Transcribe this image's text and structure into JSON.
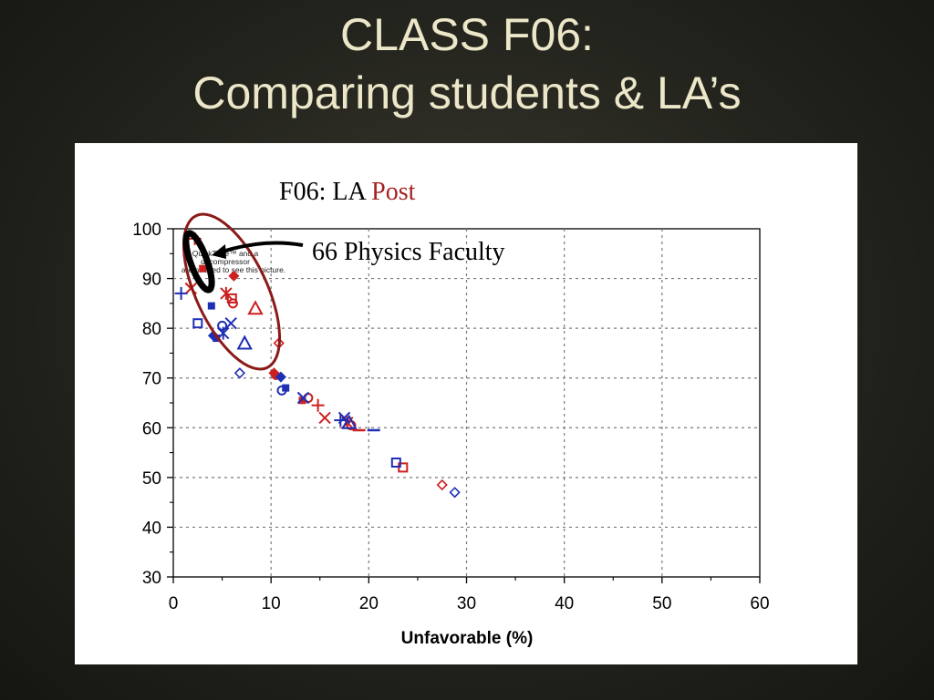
{
  "slide": {
    "title_line1": "CLASS F06:",
    "title_line2": "Comparing students & LA’s"
  },
  "colors": {
    "red": "#cc1f1f",
    "blue": "#1f2fb3",
    "ellipse": "#8b1a1a",
    "grid": "#7a7a7a"
  },
  "chart_data": {
    "type": "scatter",
    "title_prefix": "F06: LA ",
    "title_highlight": "Post",
    "xlabel": "Unfavorable (%)",
    "ylabel": "",
    "xlim": [
      0,
      60
    ],
    "ylim": [
      30,
      100
    ],
    "xticks": [
      0,
      10,
      20,
      30,
      40,
      50,
      60
    ],
    "yticks": [
      30,
      40,
      50,
      60,
      70,
      80,
      90,
      100
    ],
    "grid": true,
    "annotation": {
      "text": "66  Physics Faculty",
      "placeholder_lines": [
        "QuickTime™ and a",
        "decompressor",
        "are needed to see this picture."
      ]
    },
    "series": [
      {
        "color": "red",
        "points": [
          {
            "x": 2.2,
            "y": 98,
            "m": "plus"
          },
          {
            "x": 3.0,
            "y": 92,
            "m": "square"
          },
          {
            "x": 6.2,
            "y": 90.5,
            "m": "diamond"
          },
          {
            "x": 1.8,
            "y": 88,
            "m": "x"
          },
          {
            "x": 5.4,
            "y": 87,
            "m": "star"
          },
          {
            "x": 6.0,
            "y": 86,
            "m": "square-open"
          },
          {
            "x": 6.1,
            "y": 85,
            "m": "circle-open"
          },
          {
            "x": 8.4,
            "y": 84,
            "m": "triangle-open"
          },
          {
            "x": 10.8,
            "y": 77,
            "m": "diamond-open"
          },
          {
            "x": 10.3,
            "y": 71,
            "m": "diamond"
          },
          {
            "x": 10.5,
            "y": 70.5,
            "m": "circle"
          },
          {
            "x": 13.2,
            "y": 65.5,
            "m": "square"
          },
          {
            "x": 13.8,
            "y": 66,
            "m": "circle-open"
          },
          {
            "x": 14.8,
            "y": 64.5,
            "m": "plus"
          },
          {
            "x": 15.5,
            "y": 62,
            "m": "x"
          },
          {
            "x": 17.8,
            "y": 61,
            "m": "star"
          },
          {
            "x": 18.2,
            "y": 60.5,
            "m": "circle-open"
          },
          {
            "x": 19.0,
            "y": 59.5,
            "m": "dash"
          },
          {
            "x": 23.5,
            "y": 52,
            "m": "square-open"
          },
          {
            "x": 27.5,
            "y": 48.5,
            "m": "diamond-open"
          }
        ]
      },
      {
        "color": "blue",
        "points": [
          {
            "x": 0.8,
            "y": 87,
            "m": "plus"
          },
          {
            "x": 3.9,
            "y": 84.5,
            "m": "square"
          },
          {
            "x": 5.9,
            "y": 81,
            "m": "x"
          },
          {
            "x": 2.5,
            "y": 81,
            "m": "square-open"
          },
          {
            "x": 5.0,
            "y": 80.5,
            "m": "circle-open"
          },
          {
            "x": 5.1,
            "y": 79,
            "m": "star"
          },
          {
            "x": 4.1,
            "y": 78.5,
            "m": "diamond"
          },
          {
            "x": 4.4,
            "y": 78,
            "m": "square"
          },
          {
            "x": 7.3,
            "y": 77,
            "m": "triangle-open"
          },
          {
            "x": 6.8,
            "y": 71,
            "m": "diamond-open"
          },
          {
            "x": 11.0,
            "y": 70.2,
            "m": "diamond"
          },
          {
            "x": 11.5,
            "y": 68,
            "m": "square"
          },
          {
            "x": 11.1,
            "y": 67.5,
            "m": "circle-open"
          },
          {
            "x": 13.3,
            "y": 66,
            "m": "x"
          },
          {
            "x": 17.1,
            "y": 61.5,
            "m": "plus"
          },
          {
            "x": 17.5,
            "y": 62,
            "m": "x"
          },
          {
            "x": 18.0,
            "y": 61,
            "m": "triangle-open"
          },
          {
            "x": 20.5,
            "y": 59.5,
            "m": "dash"
          },
          {
            "x": 22.8,
            "y": 53,
            "m": "square-open"
          },
          {
            "x": 28.8,
            "y": 47,
            "m": "diamond-open"
          }
        ]
      }
    ]
  }
}
